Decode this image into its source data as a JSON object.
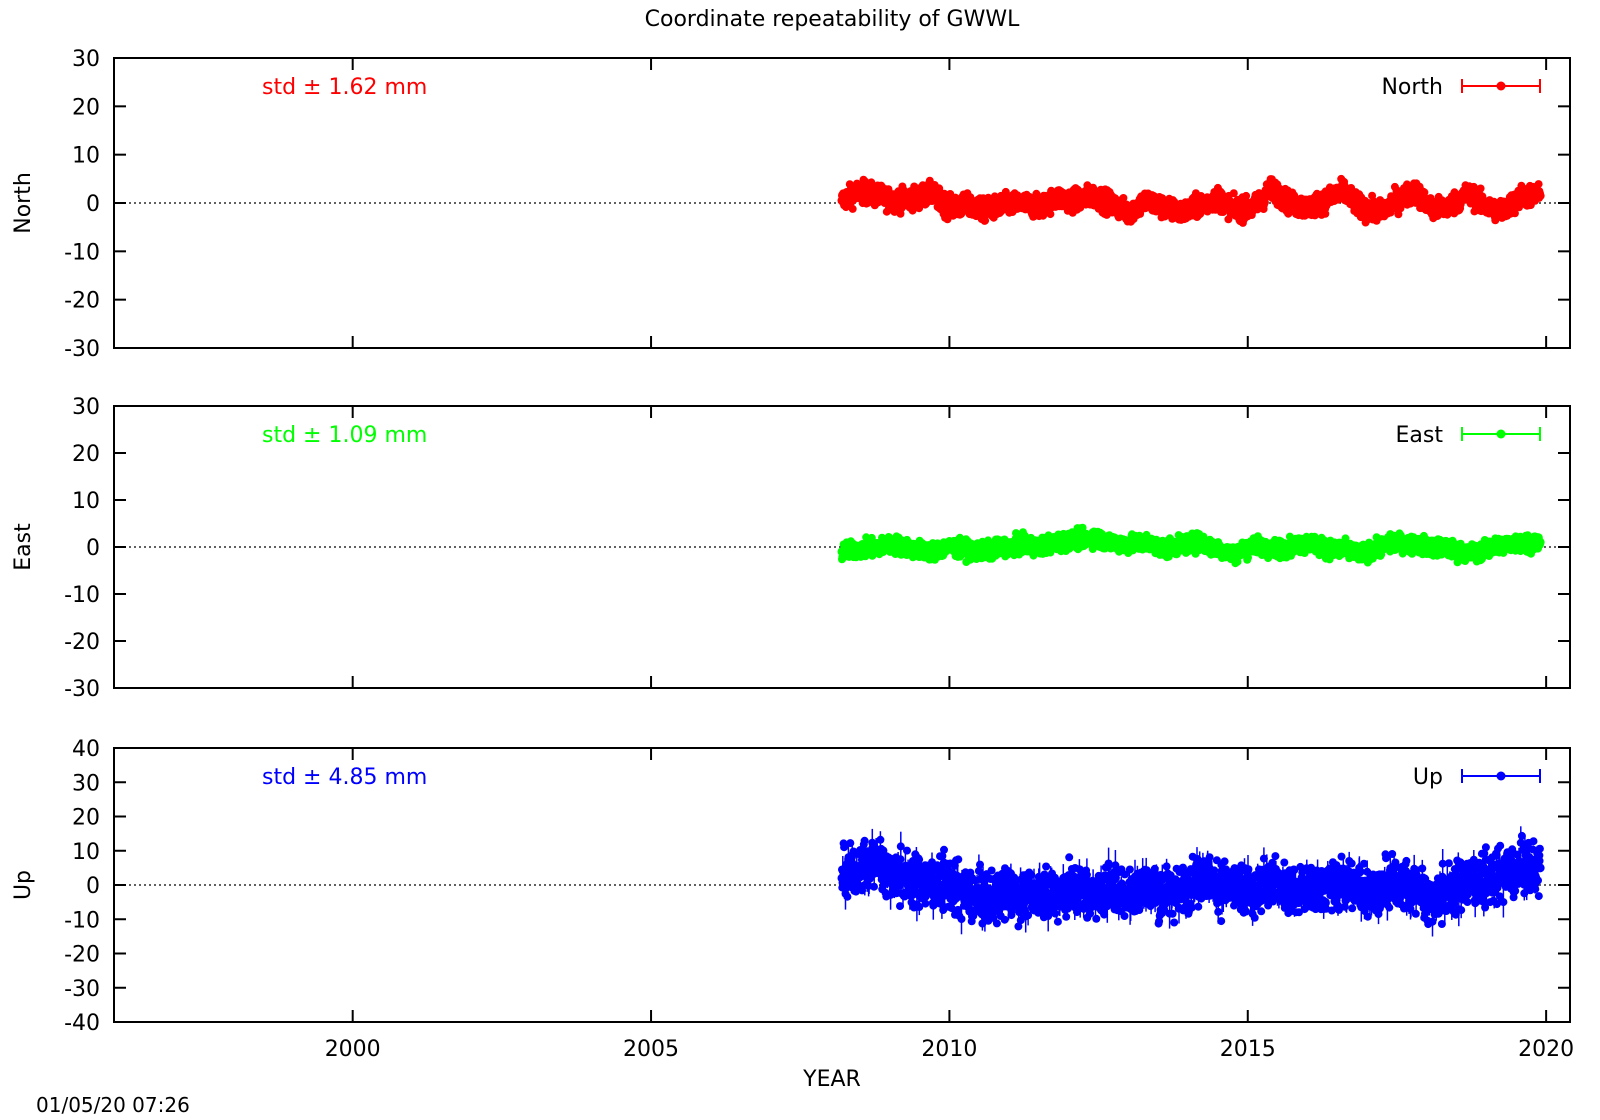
{
  "chart_data": [
    {
      "type": "scatter",
      "title": "Coordinate repeatability of GWWL",
      "component": "North",
      "ylabel": "North",
      "xlim": [
        1996,
        2020.4
      ],
      "ylim": [
        -30,
        30
      ],
      "yticks": [
        -30,
        -20,
        -10,
        0,
        10,
        20,
        30
      ],
      "xticks": [
        2000,
        2005,
        2010,
        2015,
        2020
      ],
      "annotation": "std ± 1.62 mm",
      "legend": "North",
      "legend_position": "top-right",
      "zero_line": "dotted",
      "color": "#ff0000",
      "series": [
        {
          "name": "North",
          "x": [
            2008.2,
            2008.5,
            2008.8,
            2009.1,
            2009.4,
            2009.7,
            2010.0,
            2010.3,
            2010.6,
            2010.9,
            2011.2,
            2011.5,
            2011.8,
            2012.1,
            2012.4,
            2012.7,
            2013.0,
            2013.3,
            2013.6,
            2013.9,
            2014.2,
            2014.5,
            2014.8,
            2015.1,
            2015.4,
            2015.7,
            2016.0,
            2016.3,
            2016.6,
            2016.9,
            2017.2,
            2017.5,
            2017.8,
            2018.1,
            2018.4,
            2018.7,
            2019.0,
            2019.3,
            2019.6,
            2019.9
          ],
          "y": [
            0.5,
            2.5,
            1.5,
            0.5,
            1.0,
            2.0,
            -1.0,
            -0.5,
            -1.5,
            -0.5,
            0.0,
            -1.0,
            1.0,
            0.5,
            1.5,
            0.0,
            -2.0,
            0.5,
            -1.0,
            -2.0,
            -0.5,
            1.0,
            -1.5,
            -1.0,
            3.0,
            0.0,
            -1.0,
            0.5,
            2.5,
            -1.0,
            -2.0,
            0.5,
            2.5,
            -1.5,
            -0.5,
            2.0,
            -1.0,
            -1.5,
            1.5,
            1.5
          ]
        }
      ]
    },
    {
      "type": "scatter",
      "component": "East",
      "ylabel": "East",
      "xlim": [
        1996,
        2020.4
      ],
      "ylim": [
        -30,
        30
      ],
      "yticks": [
        -30,
        -20,
        -10,
        0,
        10,
        20,
        30
      ],
      "xticks": [
        2000,
        2005,
        2010,
        2015,
        2020
      ],
      "annotation": "std ± 1.09 mm",
      "legend": "East",
      "legend_position": "top-right",
      "zero_line": "dotted",
      "color": "#00ff00",
      "series": [
        {
          "name": "East",
          "x": [
            2008.2,
            2008.5,
            2008.8,
            2009.1,
            2009.4,
            2009.7,
            2010.0,
            2010.3,
            2010.6,
            2010.9,
            2011.2,
            2011.5,
            2011.8,
            2012.1,
            2012.4,
            2012.7,
            2013.0,
            2013.3,
            2013.6,
            2013.9,
            2014.2,
            2014.5,
            2014.8,
            2015.1,
            2015.4,
            2015.7,
            2016.0,
            2016.3,
            2016.6,
            2016.9,
            2017.2,
            2017.5,
            2017.8,
            2018.1,
            2018.4,
            2018.7,
            2019.0,
            2019.3,
            2019.6,
            2019.9
          ],
          "y": [
            -1.0,
            -0.5,
            0.0,
            0.5,
            -0.5,
            -1.0,
            0.0,
            -0.5,
            -1.0,
            0.0,
            0.5,
            0.0,
            1.0,
            1.5,
            2.0,
            1.0,
            0.5,
            1.0,
            -0.5,
            0.5,
            1.0,
            -0.5,
            -1.5,
            0.5,
            -0.5,
            0.0,
            1.0,
            -0.5,
            -0.5,
            -1.5,
            0.0,
            1.0,
            0.5,
            0.0,
            -0.5,
            -1.5,
            -0.5,
            0.5,
            1.0,
            1.0
          ]
        }
      ]
    },
    {
      "type": "scatter",
      "component": "Up",
      "ylabel": "Up",
      "xlabel": "YEAR",
      "xlim": [
        1996,
        2020.4
      ],
      "ylim": [
        -40,
        40
      ],
      "yticks": [
        -40,
        -30,
        -20,
        -10,
        0,
        10,
        20,
        30,
        40
      ],
      "xticks": [
        2000,
        2005,
        2010,
        2015,
        2020
      ],
      "annotation": "std ± 4.85 mm",
      "legend": "Up",
      "legend_position": "top-right",
      "zero_line": "dotted",
      "color": "#0000ff",
      "series": [
        {
          "name": "Up",
          "x": [
            2008.2,
            2008.5,
            2008.8,
            2009.1,
            2009.4,
            2009.7,
            2010.0,
            2010.3,
            2010.6,
            2010.9,
            2011.2,
            2011.5,
            2011.8,
            2012.1,
            2012.4,
            2012.7,
            2013.0,
            2013.3,
            2013.6,
            2013.9,
            2014.2,
            2014.5,
            2014.8,
            2015.1,
            2015.4,
            2015.7,
            2016.0,
            2016.3,
            2016.6,
            2016.9,
            2017.2,
            2017.5,
            2017.8,
            2018.1,
            2018.4,
            2018.7,
            2019.0,
            2019.3,
            2019.6,
            2019.9
          ],
          "y": [
            2.0,
            5.0,
            6.0,
            3.0,
            2.0,
            1.0,
            0.0,
            -3.0,
            -5.0,
            -2.0,
            -4.0,
            -2.0,
            -3.0,
            -1.0,
            -3.0,
            -1.0,
            -2.0,
            0.0,
            -3.0,
            -1.0,
            2.0,
            0.0,
            -1.0,
            -2.0,
            1.0,
            -1.0,
            -2.0,
            0.0,
            0.0,
            -1.0,
            -2.0,
            1.0,
            -2.0,
            -4.0,
            -1.0,
            2.0,
            1.0,
            3.0,
            4.0,
            5.0
          ]
        }
      ]
    }
  ],
  "footer": {
    "timestamp": "01/05/20 07:26"
  }
}
